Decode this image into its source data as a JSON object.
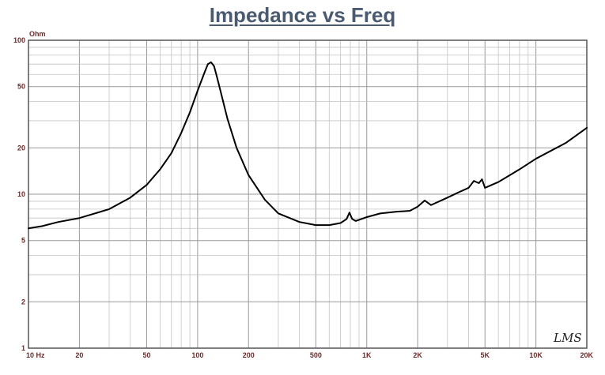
{
  "chart_data": {
    "type": "line",
    "title": "Impedance vs Freq",
    "ylabel": "Ohm",
    "xlabel": "",
    "x_scale": "log",
    "y_scale": "log",
    "xlim": [
      10,
      20000
    ],
    "ylim": [
      1,
      100
    ],
    "grid": true,
    "x_tick_labels": [
      {
        "value": 10,
        "label": "10 Hz"
      },
      {
        "value": 20,
        "label": "20"
      },
      {
        "value": 50,
        "label": "50"
      },
      {
        "value": 100,
        "label": "100"
      },
      {
        "value": 200,
        "label": "200"
      },
      {
        "value": 500,
        "label": "500"
      },
      {
        "value": 1000,
        "label": "1K"
      },
      {
        "value": 2000,
        "label": "2K"
      },
      {
        "value": 5000,
        "label": "5K"
      },
      {
        "value": 10000,
        "label": "10K"
      },
      {
        "value": 20000,
        "label": "20K"
      }
    ],
    "y_tick_labels": [
      {
        "value": 1,
        "label": "1"
      },
      {
        "value": 2,
        "label": "2"
      },
      {
        "value": 5,
        "label": "5"
      },
      {
        "value": 10,
        "label": "10"
      },
      {
        "value": 20,
        "label": "20"
      },
      {
        "value": 50,
        "label": "50"
      },
      {
        "value": 100,
        "label": "100"
      }
    ],
    "watermark": "LMS",
    "series": [
      {
        "color": "#000000",
        "x": [
          10,
          12,
          15,
          20,
          30,
          40,
          50,
          60,
          70,
          80,
          90,
          100,
          110,
          115,
          120,
          125,
          130,
          140,
          150,
          170,
          200,
          250,
          300,
          400,
          500,
          600,
          700,
          760,
          790,
          820,
          860,
          1000,
          1200,
          1500,
          1800,
          2000,
          2200,
          2400,
          3000,
          3500,
          4000,
          4300,
          4600,
          4800,
          5000,
          6000,
          8000,
          10000,
          15000,
          20000
        ],
        "y": [
          6.0,
          6.2,
          6.6,
          7.0,
          8.0,
          9.5,
          11.5,
          14.5,
          18.5,
          25,
          34,
          47,
          62,
          70,
          72,
          68,
          58,
          42,
          31,
          20,
          13.3,
          9.2,
          7.5,
          6.6,
          6.3,
          6.3,
          6.5,
          6.9,
          7.6,
          6.9,
          6.7,
          7.1,
          7.5,
          7.7,
          7.8,
          8.3,
          9.1,
          8.5,
          9.5,
          10.3,
          11.0,
          12.2,
          11.8,
          12.5,
          11.0,
          12.0,
          14.5,
          17.0,
          21.5,
          27.0
        ]
      }
    ]
  }
}
